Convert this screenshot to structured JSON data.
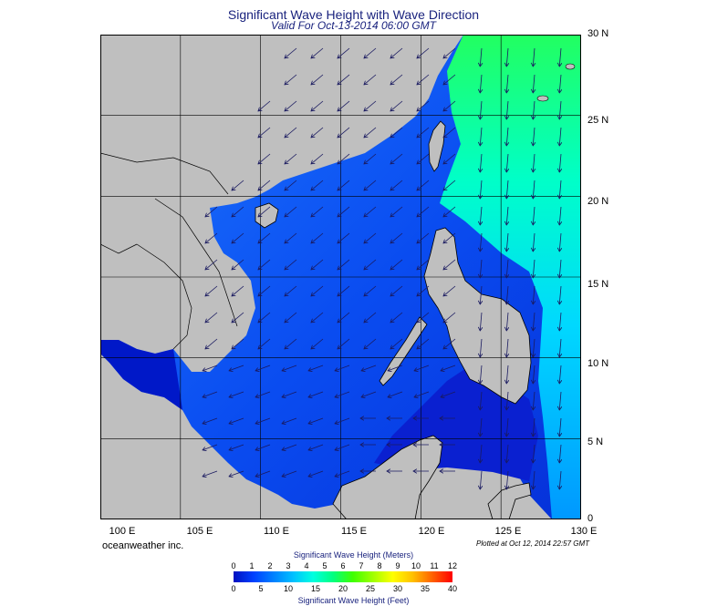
{
  "title": "Significant Wave Height with Wave Direction",
  "subtitle": "Valid For Oct-13-2014 06:00 GMT",
  "credit": "oceanweather inc.",
  "plotted": "Plotted at Oct 12, 2014 22:57 GMT",
  "lon_labels": [
    "100 E",
    "105 E",
    "110 E",
    "115 E",
    "120 E",
    "125 E",
    "130 E"
  ],
  "lat_labels": [
    "30 N",
    "25 N",
    "20 N",
    "15 N",
    "10 N",
    "5 N",
    "0"
  ],
  "colorbar": {
    "title_meters": "Significant Wave Height (Meters)",
    "title_feet": "Significant Wave Height (Feet)",
    "meter_ticks": [
      "0",
      "1",
      "2",
      "3",
      "4",
      "5",
      "6",
      "7",
      "8",
      "9",
      "10",
      "11",
      "12"
    ],
    "feet_ticks": [
      "0",
      "5",
      "10",
      "15",
      "20",
      "25",
      "30",
      "35",
      "40"
    ]
  },
  "colors": {
    "land": "#bfbfbf",
    "title": "#1a237e",
    "scale": [
      "#0010c0",
      "#0040ff",
      "#0080ff",
      "#00c0ff",
      "#00ffe0",
      "#00ff80",
      "#40ff00",
      "#a0ff00",
      "#ffff00",
      "#ffc000",
      "#ff6000",
      "#ff0000"
    ]
  }
}
